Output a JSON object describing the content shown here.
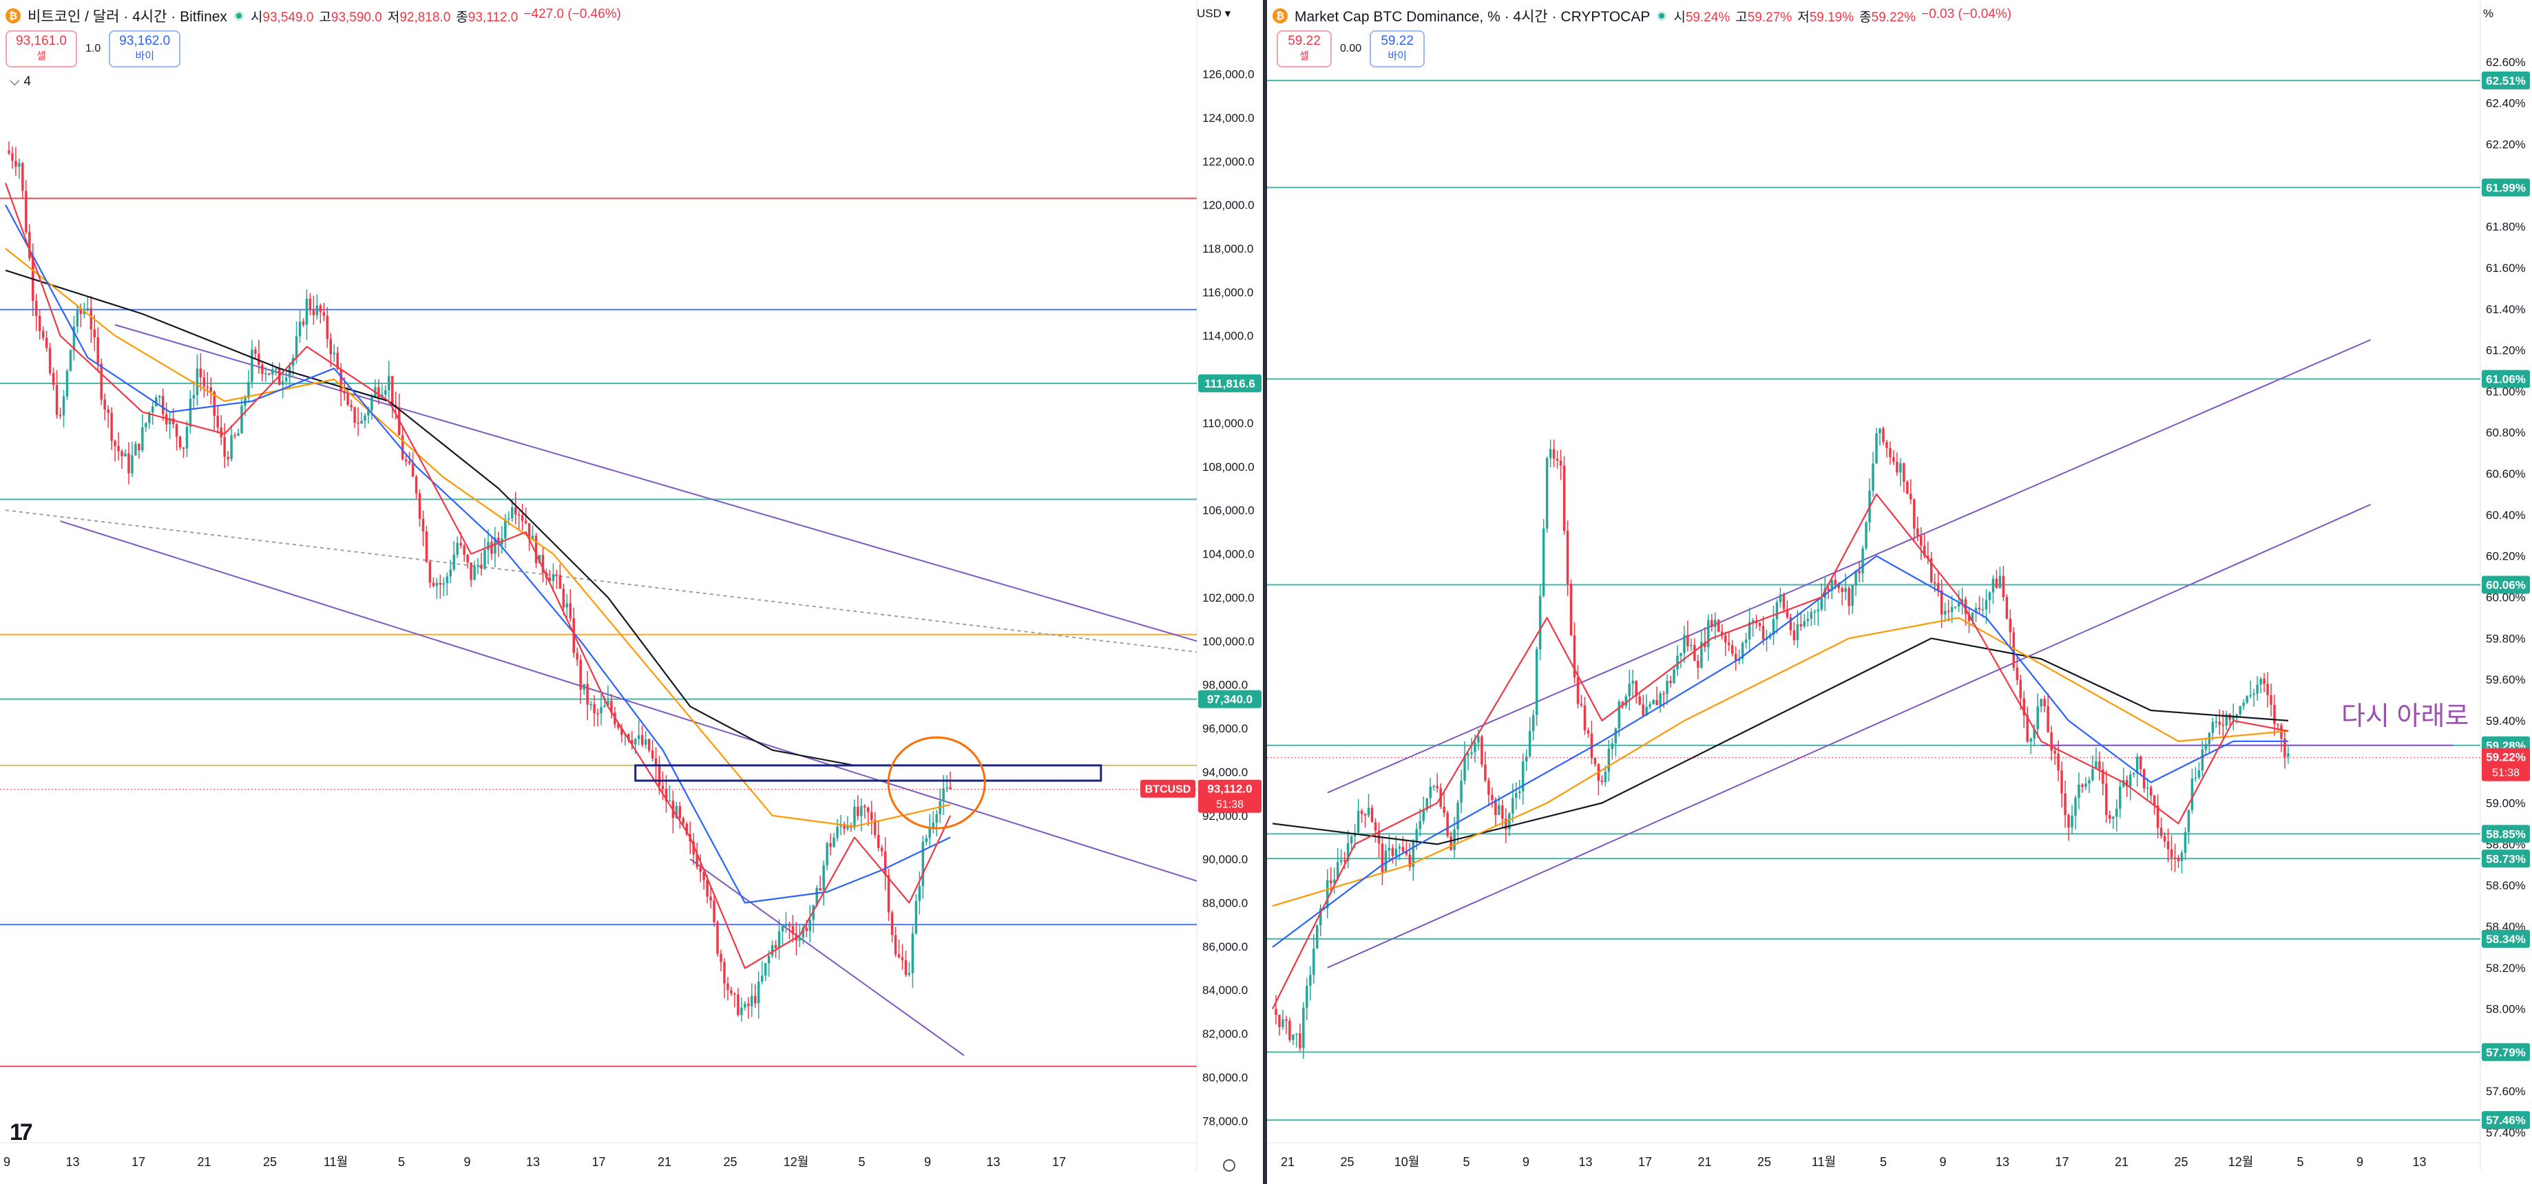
{
  "left": {
    "title": "비트코인 / 달러 · 4시간 · Bitfinex",
    "ohlc": [
      {
        "k": "시",
        "v": "93,549.0"
      },
      {
        "k": "고",
        "v": "93,590.0"
      },
      {
        "k": "저",
        "v": "92,818.0"
      },
      {
        "k": "종",
        "v": "93,112.0"
      },
      {
        "k": "",
        "v": "−427.0 (−0.46%)"
      }
    ],
    "sell_price": "93,161.0",
    "sell_label": "셀",
    "spread": "1.0",
    "buy_price": "93,162.0",
    "buy_label": "바이",
    "collapse_label": "4",
    "axis_unit": "USD",
    "colors": {
      "up": "#26a69a",
      "down": "#f23645",
      "ema_fast": "#f23645",
      "ema_mid": "#2962ff",
      "ema_slow": "#ff9800",
      "ema_long": "#131722",
      "channel": "#7e57c2"
    }
  },
  "right": {
    "title": "Market Cap BTC Dominance, % · 4시간 · CRYPTOCAP",
    "ohlc": [
      {
        "k": "시",
        "v": "59.24%"
      },
      {
        "k": "고",
        "v": "59.27%"
      },
      {
        "k": "저",
        "v": "59.19%"
      },
      {
        "k": "종",
        "v": "59.22%"
      },
      {
        "k": "",
        "v": "−0.03 (−0.04%)"
      }
    ],
    "sell_price": "59.22",
    "sell_label": "셀",
    "spread": "0.00",
    "buy_price": "59.22",
    "buy_label": "바이",
    "axis_unit": "%",
    "annotation": "다시 아래로"
  },
  "chart_data": [
    {
      "type": "candlestick",
      "title": "비트코인 / 달러 · 4시간 · Bitfinex",
      "ylim": [
        77000,
        127500
      ],
      "y_ticks": [
        78000,
        80000,
        82000,
        84000,
        86000,
        88000,
        90000,
        92000,
        94000,
        96000,
        98000,
        100000,
        102000,
        104000,
        106000,
        108000,
        110000,
        112000,
        114000,
        116000,
        118000,
        120000,
        122000,
        124000,
        126000
      ],
      "x_ticks": [
        "9",
        "13",
        "17",
        "21",
        "25",
        "11월",
        "5",
        "9",
        "13",
        "17",
        "21",
        "25",
        "12월",
        "5",
        "9",
        "13",
        "17"
      ],
      "last_price_label": "93,112.0",
      "last_price_countdown": "51:38",
      "symbol_label": "BTCUSD",
      "price_labels": [
        {
          "value": 111816.6,
          "text": "111,816.6"
        },
        {
          "value": 97340.0,
          "text": "97,340.0"
        }
      ],
      "horizontal_lines": [
        {
          "value": 120300,
          "color": "#f23645"
        },
        {
          "value": 115200,
          "color": "#2962ff"
        },
        {
          "value": 111816.6,
          "color": "#26a69a"
        },
        {
          "value": 106500,
          "color": "#26a69a"
        },
        {
          "value": 100300,
          "color": "#ff9800"
        },
        {
          "value": 97340,
          "color": "#26a69a"
        },
        {
          "value": 94300,
          "color": "#c9b458"
        },
        {
          "value": 87000,
          "color": "#2962ff"
        },
        {
          "value": 80500,
          "color": "#f23645"
        }
      ],
      "price_path": [
        [
          0,
          122500
        ],
        [
          1,
          122000
        ],
        [
          2,
          116000
        ],
        [
          3,
          113000
        ],
        [
          4,
          110000
        ],
        [
          5,
          114500
        ],
        [
          6,
          115500
        ],
        [
          7,
          111500
        ],
        [
          8,
          109000
        ],
        [
          9,
          108000
        ],
        [
          10,
          109500
        ],
        [
          11,
          111500
        ],
        [
          12,
          110000
        ],
        [
          13,
          109000
        ],
        [
          14,
          112500
        ],
        [
          15,
          111000
        ],
        [
          16,
          108500
        ],
        [
          17,
          109500
        ],
        [
          18,
          113000
        ],
        [
          19,
          112500
        ],
        [
          20,
          112000
        ],
        [
          21,
          113000
        ],
        [
          22,
          115500
        ],
        [
          23,
          115000
        ],
        [
          24,
          113000
        ],
        [
          25,
          110500
        ],
        [
          26,
          110000
        ],
        [
          27,
          111500
        ],
        [
          28,
          112000
        ],
        [
          29,
          108500
        ],
        [
          30,
          107000
        ],
        [
          31,
          103000
        ],
        [
          32,
          102500
        ],
        [
          33,
          104500
        ],
        [
          34,
          103000
        ],
        [
          35,
          104000
        ],
        [
          36,
          104500
        ],
        [
          37,
          106500
        ],
        [
          38,
          105500
        ],
        [
          39,
          103500
        ],
        [
          40,
          103000
        ],
        [
          41,
          101500
        ],
        [
          42,
          98000
        ],
        [
          43,
          96500
        ],
        [
          44,
          97000
        ],
        [
          45,
          96000
        ],
        [
          46,
          95500
        ],
        [
          47,
          95000
        ],
        [
          48,
          93000
        ],
        [
          49,
          92000
        ],
        [
          50,
          90500
        ],
        [
          51,
          89500
        ],
        [
          52,
          86000
        ],
        [
          53,
          83500
        ],
        [
          54,
          83000
        ],
        [
          55,
          84000
        ],
        [
          56,
          86000
        ],
        [
          57,
          87000
        ],
        [
          58,
          86500
        ],
        [
          59,
          87500
        ],
        [
          60,
          90500
        ],
        [
          61,
          91500
        ],
        [
          62,
          92000
        ],
        [
          63,
          92000
        ],
        [
          64,
          90500
        ],
        [
          65,
          85500
        ],
        [
          66,
          85000
        ],
        [
          67,
          90500
        ],
        [
          68,
          92500
        ],
        [
          69,
          93200
        ]
      ],
      "ema_fast": [
        [
          0,
          121000
        ],
        [
          4,
          114000
        ],
        [
          10,
          110500
        ],
        [
          16,
          109500
        ],
        [
          22,
          113500
        ],
        [
          28,
          111000
        ],
        [
          34,
          104000
        ],
        [
          38,
          105000
        ],
        [
          44,
          97000
        ],
        [
          50,
          91000
        ],
        [
          54,
          85000
        ],
        [
          58,
          86500
        ],
        [
          62,
          91000
        ],
        [
          66,
          88000
        ],
        [
          69,
          92000
        ]
      ],
      "ema_mid": [
        [
          0,
          120000
        ],
        [
          6,
          113000
        ],
        [
          12,
          110500
        ],
        [
          18,
          111000
        ],
        [
          24,
          112500
        ],
        [
          30,
          108000
        ],
        [
          36,
          104500
        ],
        [
          42,
          100000
        ],
        [
          48,
          95000
        ],
        [
          54,
          88000
        ],
        [
          60,
          88500
        ],
        [
          64,
          89500
        ],
        [
          69,
          91000
        ]
      ],
      "ema_slow": [
        [
          0,
          118000
        ],
        [
          8,
          114000
        ],
        [
          16,
          111000
        ],
        [
          24,
          112000
        ],
        [
          32,
          107500
        ],
        [
          40,
          104000
        ],
        [
          48,
          98000
        ],
        [
          56,
          92000
        ],
        [
          62,
          91500
        ],
        [
          69,
          92500
        ]
      ],
      "ema_long": [
        [
          0,
          117000
        ],
        [
          10,
          115000
        ],
        [
          20,
          112500
        ],
        [
          28,
          111000
        ],
        [
          36,
          107000
        ],
        [
          44,
          102000
        ],
        [
          50,
          97000
        ],
        [
          56,
          95000
        ],
        [
          62,
          94300
        ]
      ],
      "trendlines": [
        {
          "from": [
            8,
            114500
          ],
          "to": [
            87,
            100000
          ],
          "color": "#7e57c2"
        },
        {
          "from": [
            4,
            105500
          ],
          "to": [
            87,
            89000
          ],
          "color": "#7e57c2"
        },
        {
          "from": [
            50,
            90000
          ],
          "to": [
            70,
            81000
          ],
          "color": "#7e57c2"
        },
        {
          "from": [
            0,
            106000
          ],
          "to": [
            87,
            99500
          ],
          "color": "#9e9e9e",
          "dashed": true
        }
      ],
      "zone": {
        "x_from": 46,
        "x_to": 80,
        "y_from": 93600,
        "y_to": 94300,
        "color": "#1a237e"
      },
      "circle": {
        "x": 68,
        "y": 93500,
        "color": "#ff6d00"
      }
    },
    {
      "type": "candlestick",
      "title": "Market Cap BTC Dominance, % · 4시간 · CRYPTOCAP",
      "ylim": [
        57.35,
        62.7
      ],
      "y_ticks": [
        57.4,
        57.6,
        57.8,
        58.0,
        58.2,
        58.4,
        58.6,
        58.8,
        59.0,
        59.2,
        59.4,
        59.6,
        59.8,
        60.0,
        60.2,
        60.4,
        60.6,
        60.8,
        61.0,
        61.2,
        61.4,
        61.6,
        61.8,
        62.0,
        62.2,
        62.4,
        62.6
      ],
      "x_ticks": [
        "21",
        "25",
        "10월",
        "5",
        "9",
        "13",
        "17",
        "21",
        "25",
        "11월",
        "5",
        "9",
        "13",
        "17",
        "21",
        "25",
        "12월",
        "5",
        "9",
        "13"
      ],
      "last_price_label": "59.22%",
      "last_price_countdown": "51:38",
      "price_labels": [
        {
          "value": 62.51,
          "text": "62.51%"
        },
        {
          "value": 61.99,
          "text": "61.99%"
        },
        {
          "value": 61.06,
          "text": "61.06%"
        },
        {
          "value": 60.06,
          "text": "60.06%"
        },
        {
          "value": 59.28,
          "text": "59.28%"
        },
        {
          "value": 58.85,
          "text": "58.85%"
        },
        {
          "value": 58.73,
          "text": "58.73%"
        },
        {
          "value": 58.34,
          "text": "58.34%"
        },
        {
          "value": 57.79,
          "text": "57.79%"
        },
        {
          "value": 57.46,
          "text": "57.46%"
        }
      ],
      "horizontal_lines": [
        62.51,
        61.99,
        61.06,
        60.06,
        59.28,
        58.85,
        58.73,
        58.34,
        57.79,
        57.46
      ],
      "price_path": [
        [
          0,
          58.0
        ],
        [
          1,
          57.9
        ],
        [
          2,
          57.85
        ],
        [
          3,
          58.3
        ],
        [
          4,
          58.6
        ],
        [
          5,
          58.7
        ],
        [
          6,
          58.9
        ],
        [
          7,
          59.0
        ],
        [
          8,
          58.7
        ],
        [
          9,
          58.8
        ],
        [
          10,
          58.7
        ],
        [
          11,
          59.0
        ],
        [
          12,
          59.1
        ],
        [
          13,
          58.8
        ],
        [
          14,
          59.2
        ],
        [
          15,
          59.3
        ],
        [
          16,
          59.0
        ],
        [
          17,
          58.9
        ],
        [
          18,
          59.1
        ],
        [
          19,
          59.4
        ],
        [
          20,
          60.7
        ],
        [
          21,
          60.6
        ],
        [
          22,
          59.6
        ],
        [
          23,
          59.3
        ],
        [
          24,
          59.1
        ],
        [
          25,
          59.4
        ],
        [
          26,
          59.6
        ],
        [
          27,
          59.4
        ],
        [
          28,
          59.5
        ],
        [
          29,
          59.6
        ],
        [
          30,
          59.8
        ],
        [
          31,
          59.7
        ],
        [
          32,
          59.9
        ],
        [
          33,
          59.8
        ],
        [
          34,
          59.7
        ],
        [
          35,
          59.9
        ],
        [
          36,
          59.8
        ],
        [
          37,
          60.0
        ],
        [
          38,
          59.8
        ],
        [
          39,
          59.9
        ],
        [
          40,
          60.0
        ],
        [
          41,
          60.1
        ],
        [
          42,
          60.0
        ],
        [
          43,
          60.2
        ],
        [
          44,
          60.8
        ],
        [
          45,
          60.7
        ],
        [
          46,
          60.6
        ],
        [
          47,
          60.3
        ],
        [
          48,
          60.1
        ],
        [
          49,
          59.9
        ],
        [
          50,
          60.0
        ],
        [
          51,
          59.9
        ],
        [
          52,
          60.0
        ],
        [
          53,
          60.1
        ],
        [
          54,
          59.7
        ],
        [
          55,
          59.3
        ],
        [
          56,
          59.5
        ],
        [
          57,
          59.2
        ],
        [
          58,
          58.9
        ],
        [
          59,
          59.1
        ],
        [
          60,
          59.2
        ],
        [
          61,
          58.9
        ],
        [
          62,
          59.1
        ],
        [
          63,
          59.2
        ],
        [
          64,
          59.0
        ],
        [
          65,
          58.8
        ],
        [
          66,
          58.7
        ],
        [
          67,
          59.1
        ],
        [
          68,
          59.3
        ],
        [
          69,
          59.4
        ],
        [
          70,
          59.45
        ],
        [
          71,
          59.5
        ],
        [
          72,
          59.6
        ],
        [
          73,
          59.4
        ],
        [
          74,
          59.22
        ]
      ],
      "ema_fast": [
        [
          0,
          58.0
        ],
        [
          6,
          58.8
        ],
        [
          12,
          59.0
        ],
        [
          20,
          59.9
        ],
        [
          24,
          59.4
        ],
        [
          32,
          59.8
        ],
        [
          40,
          60.0
        ],
        [
          44,
          60.5
        ],
        [
          50,
          60.0
        ],
        [
          56,
          59.3
        ],
        [
          62,
          59.1
        ],
        [
          66,
          58.9
        ],
        [
          70,
          59.4
        ],
        [
          74,
          59.35
        ]
      ],
      "ema_mid": [
        [
          0,
          58.3
        ],
        [
          8,
          58.7
        ],
        [
          16,
          59.0
        ],
        [
          24,
          59.3
        ],
        [
          34,
          59.7
        ],
        [
          44,
          60.2
        ],
        [
          52,
          59.9
        ],
        [
          58,
          59.4
        ],
        [
          64,
          59.1
        ],
        [
          70,
          59.3
        ],
        [
          74,
          59.3
        ]
      ],
      "ema_slow": [
        [
          0,
          58.5
        ],
        [
          10,
          58.7
        ],
        [
          20,
          59.0
        ],
        [
          30,
          59.4
        ],
        [
          42,
          59.8
        ],
        [
          50,
          59.9
        ],
        [
          58,
          59.6
        ],
        [
          66,
          59.3
        ],
        [
          74,
          59.35
        ]
      ],
      "ema_long": [
        [
          0,
          58.9
        ],
        [
          12,
          58.8
        ],
        [
          24,
          59.0
        ],
        [
          36,
          59.4
        ],
        [
          48,
          59.8
        ],
        [
          56,
          59.7
        ],
        [
          64,
          59.45
        ],
        [
          74,
          59.4
        ]
      ],
      "trendlines": [
        {
          "from": [
            4,
            59.05
          ],
          "to": [
            80,
            61.25
          ],
          "color": "#7e57c2"
        },
        {
          "from": [
            4,
            58.2
          ],
          "to": [
            80,
            60.45
          ],
          "color": "#7e57c2"
        },
        {
          "from": [
            56,
            59.28
          ],
          "to": [
            86,
            59.28
          ],
          "color": "#7e57c2"
        }
      ]
    }
  ]
}
